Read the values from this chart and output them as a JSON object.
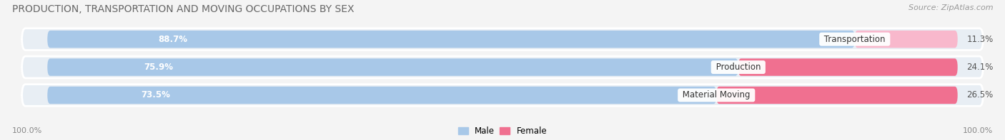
{
  "title": "PRODUCTION, TRANSPORTATION AND MOVING OCCUPATIONS BY SEX",
  "source": "Source: ZipAtlas.com",
  "categories": [
    "Transportation",
    "Production",
    "Material Moving"
  ],
  "male_values": [
    88.7,
    75.9,
    73.5
  ],
  "female_values": [
    11.3,
    24.1,
    26.5
  ],
  "male_color": "#a8c8e8",
  "female_color": "#f07090",
  "female_light_color": "#f8b8cc",
  "row_bg_color": "#e8eef4",
  "fig_bg_color": "#f4f4f4",
  "title_fontsize": 10,
  "source_fontsize": 8,
  "label_fontsize": 8.5,
  "cat_fontsize": 8.5,
  "tick_fontsize": 8,
  "left_label": "100.0%",
  "right_label": "100.0%"
}
